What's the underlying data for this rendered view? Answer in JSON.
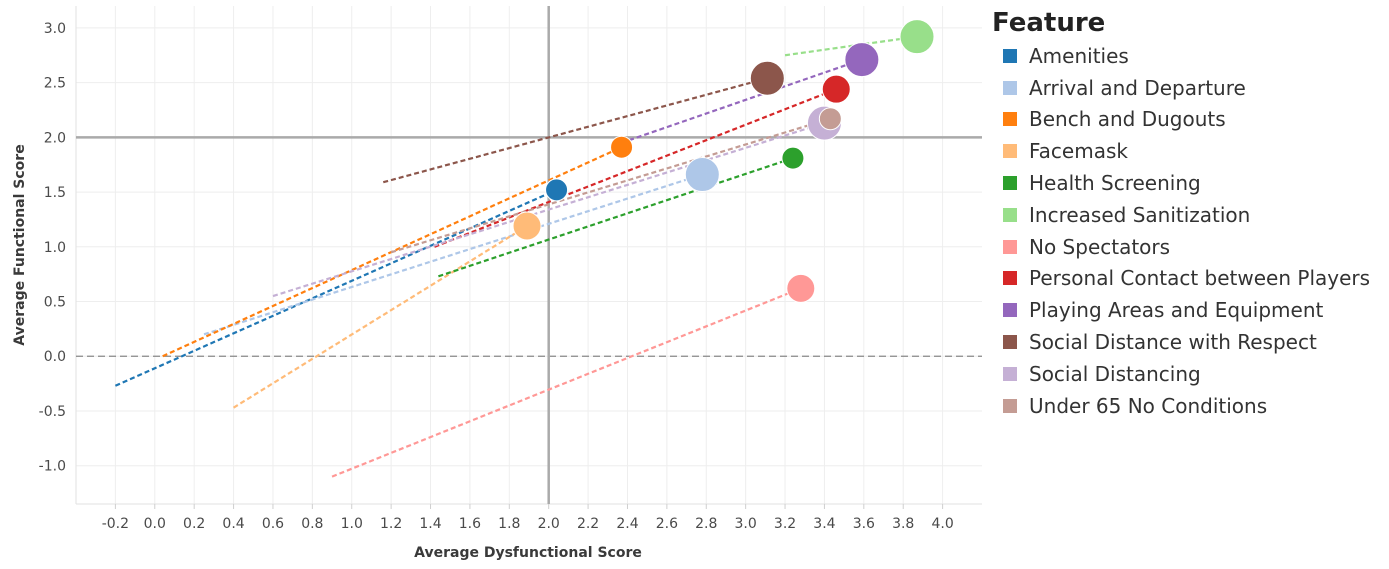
{
  "chart_data": {
    "type": "scatter",
    "xlabel": "Average Dysfunctional Score",
    "ylabel": "Average Functional Score",
    "xlim": [
      -0.4,
      4.2
    ],
    "ylim": [
      -1.35,
      3.2
    ],
    "xticks": [
      "-0.2",
      "0.0",
      "0.2",
      "0.4",
      "0.6",
      "0.8",
      "1.0",
      "1.2",
      "1.4",
      "1.6",
      "1.8",
      "2.0",
      "2.2",
      "2.4",
      "2.6",
      "2.8",
      "3.0",
      "3.2",
      "3.4",
      "3.6",
      "3.8",
      "4.0"
    ],
    "yticks": [
      "-1.0",
      "-0.5",
      "0.0",
      "0.5",
      "1.0",
      "1.5",
      "2.0",
      "2.5",
      "3.0"
    ],
    "reference_lines": {
      "x": 2.0,
      "y": 2.0,
      "zero_y": 0.0
    },
    "legend_title": "Feature",
    "legend_position": "right",
    "grid": true,
    "series": [
      {
        "name": "Amenities",
        "color": "#1f77b4",
        "point": [
          2.04,
          1.52
        ],
        "size": "small",
        "trend_start": [
          -0.2,
          -0.27
        ],
        "trend_end": [
          2.04,
          1.52
        ]
      },
      {
        "name": "Arrival and Departure",
        "color": "#aec7e8",
        "point": [
          2.78,
          1.66
        ],
        "size": "large",
        "trend_start": [
          0.25,
          0.2
        ],
        "trend_end": [
          2.78,
          1.66
        ]
      },
      {
        "name": "Bench and Dugouts",
        "color": "#ff7f0e",
        "point": [
          2.37,
          1.91
        ],
        "size": "small",
        "trend_start": [
          0.04,
          0.0
        ],
        "trend_end": [
          2.37,
          1.91
        ]
      },
      {
        "name": "Facemask",
        "color": "#ffbb78",
        "point": [
          1.89,
          1.19
        ],
        "size": "medium",
        "trend_start": [
          0.4,
          -0.47
        ],
        "trend_end": [
          1.89,
          1.19
        ]
      },
      {
        "name": "Health Screening",
        "color": "#2ca02c",
        "point": [
          3.24,
          1.81
        ],
        "size": "small",
        "trend_start": [
          1.44,
          0.73
        ],
        "trend_end": [
          3.24,
          1.81
        ]
      },
      {
        "name": "Increased Sanitization",
        "color": "#98df8a",
        "point": [
          3.87,
          2.92
        ],
        "size": "large",
        "trend_start": [
          3.2,
          2.75
        ],
        "trend_end": [
          3.87,
          2.92
        ]
      },
      {
        "name": "No Spectators",
        "color": "#ff9896",
        "point": [
          3.28,
          0.62
        ],
        "size": "medium",
        "trend_start": [
          0.9,
          -1.1
        ],
        "trend_end": [
          3.28,
          0.62
        ]
      },
      {
        "name": "Personal Contact between Players",
        "color": "#d62728",
        "point": [
          3.46,
          2.44
        ],
        "size": "medium",
        "trend_start": [
          1.42,
          1.0
        ],
        "trend_end": [
          3.46,
          2.44
        ]
      },
      {
        "name": "Playing Areas and Equipment",
        "color": "#9467bd",
        "point": [
          3.59,
          2.71
        ],
        "size": "large",
        "trend_start": [
          2.37,
          1.95
        ],
        "trend_end": [
          3.59,
          2.71
        ]
      },
      {
        "name": "Social Distance with Respect",
        "color": "#8c564b",
        "point": [
          3.11,
          2.54
        ],
        "size": "large",
        "trend_start": [
          1.16,
          1.59
        ],
        "trend_end": [
          3.11,
          2.54
        ]
      },
      {
        "name": "Social Distancing",
        "color": "#c5b0d5",
        "point": [
          3.4,
          2.13
        ],
        "size": "large",
        "trend_start": [
          0.6,
          0.55
        ],
        "trend_end": [
          3.4,
          2.13
        ]
      },
      {
        "name": "Under 65 No Conditions",
        "color": "#c49c94",
        "point": [
          3.43,
          2.17
        ],
        "size": "small",
        "trend_start": [
          1.2,
          0.95
        ],
        "trend_end": [
          3.43,
          2.17
        ]
      }
    ]
  }
}
